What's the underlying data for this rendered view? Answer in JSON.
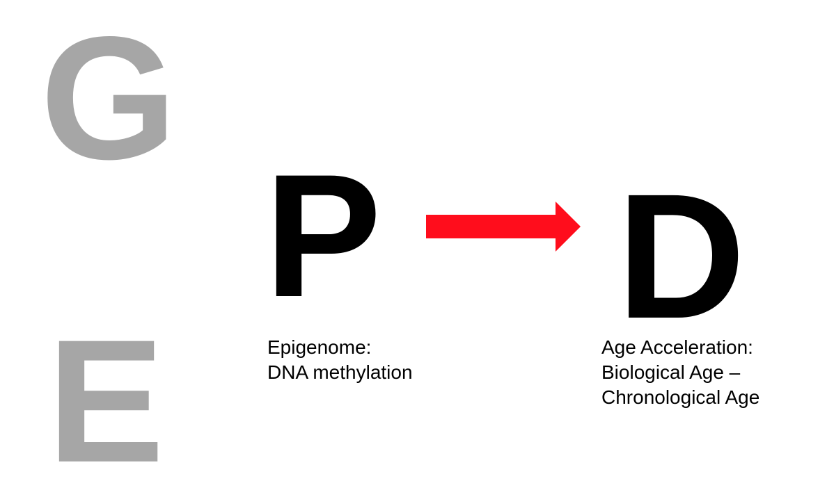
{
  "letters": {
    "g": "G",
    "e": "E",
    "p": "P",
    "d": "D"
  },
  "captions": {
    "p": {
      "line1": "Epigenome:",
      "line2": "DNA methylation"
    },
    "d": {
      "line1": "Age Acceleration:",
      "line2": "Biological Age –",
      "line3": "Chronological Age"
    }
  },
  "colors": {
    "muted_letter": "#a6a6a6",
    "primary_letter": "#000000",
    "arrow": "#ff0d1c"
  },
  "arrow_icon": "right-arrow-icon"
}
